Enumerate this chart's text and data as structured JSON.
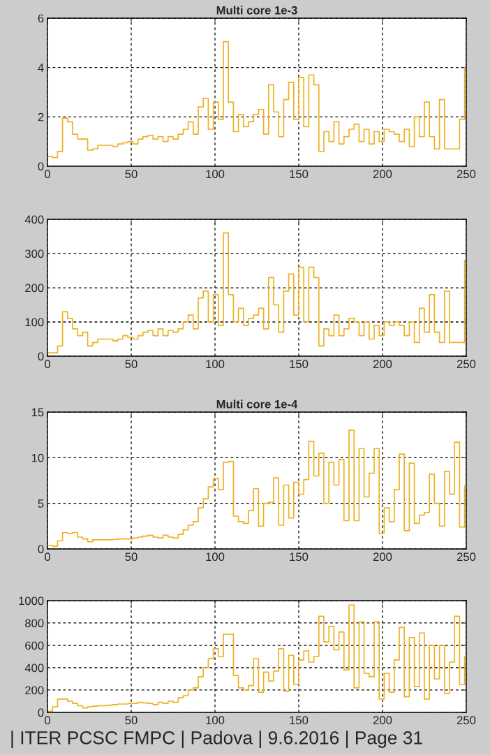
{
  "chart_data": [
    {
      "type": "step",
      "title": "Multi core 1e-3",
      "x": [
        0,
        3,
        6,
        9,
        12,
        15,
        18,
        21,
        24,
        27,
        30,
        33,
        36,
        39,
        42,
        45,
        48,
        51,
        54,
        57,
        60,
        63,
        66,
        69,
        72,
        75,
        78,
        81,
        84,
        87,
        90,
        93,
        96,
        99,
        102,
        105,
        108,
        111,
        114,
        117,
        120,
        123,
        126,
        129,
        132,
        135,
        138,
        141,
        144,
        147,
        150,
        153,
        156,
        159,
        162,
        165,
        168,
        171,
        174,
        177,
        180,
        183,
        186,
        189,
        192,
        195,
        198,
        201,
        204,
        207,
        210,
        213,
        216,
        219,
        222,
        225,
        228,
        231,
        234,
        237,
        240,
        243,
        246,
        249
      ],
      "series": [
        {
          "color": "#edb120",
          "values": [
            0.4,
            0.35,
            0.6,
            1.95,
            1.8,
            1.3,
            1.1,
            1.1,
            0.65,
            0.7,
            0.85,
            0.85,
            0.85,
            0.8,
            0.9,
            0.95,
            1.0,
            0.9,
            1.1,
            1.2,
            1.25,
            1.1,
            1.2,
            1.0,
            1.2,
            1.1,
            1.3,
            1.5,
            1.8,
            1.3,
            2.4,
            2.75,
            1.5,
            2.6,
            1.9,
            5.05,
            2.6,
            1.4,
            2.1,
            1.6,
            1.8,
            2.1,
            2.3,
            1.3,
            3.3,
            2.2,
            1.2,
            2.7,
            3.4,
            1.9,
            3.6,
            1.6,
            3.7,
            3.3,
            0.6,
            1.4,
            1.0,
            1.8,
            0.9,
            1.2,
            1.5,
            1.7,
            1.0,
            1.5,
            0.9,
            1.4,
            1.0,
            1.5,
            1.4,
            1.3,
            1.0,
            1.5,
            0.8,
            2.0,
            1.2,
            2.6,
            1.2,
            0.7,
            2.7,
            0.7,
            0.7,
            0.7,
            1.9,
            4.0
          ]
        }
      ],
      "xlim": [
        0,
        250
      ],
      "ylim": [
        0,
        6
      ],
      "xticks": [
        0,
        50,
        100,
        150,
        200,
        250
      ],
      "yticks": [
        0,
        2,
        4,
        6
      ],
      "grid": true
    },
    {
      "type": "step",
      "x": [
        0,
        3,
        6,
        9,
        12,
        15,
        18,
        21,
        24,
        27,
        30,
        33,
        36,
        39,
        42,
        45,
        48,
        51,
        54,
        57,
        60,
        63,
        66,
        69,
        72,
        75,
        78,
        81,
        84,
        87,
        90,
        93,
        96,
        99,
        102,
        105,
        108,
        111,
        114,
        117,
        120,
        123,
        126,
        129,
        132,
        135,
        138,
        141,
        144,
        147,
        150,
        153,
        156,
        159,
        162,
        165,
        168,
        171,
        174,
        177,
        180,
        183,
        186,
        189,
        192,
        195,
        198,
        201,
        204,
        207,
        210,
        213,
        216,
        219,
        222,
        225,
        228,
        231,
        234,
        237,
        240,
        243,
        246,
        249
      ],
      "series": [
        {
          "color": "#edb120",
          "values": [
            10,
            10,
            30,
            130,
            110,
            80,
            60,
            70,
            30,
            40,
            50,
            50,
            50,
            45,
            50,
            60,
            55,
            50,
            60,
            70,
            75,
            60,
            80,
            60,
            75,
            70,
            80,
            100,
            120,
            80,
            170,
            190,
            100,
            180,
            90,
            360,
            180,
            100,
            140,
            90,
            110,
            120,
            140,
            80,
            230,
            150,
            70,
            190,
            240,
            120,
            260,
            100,
            260,
            230,
            30,
            80,
            60,
            120,
            60,
            80,
            110,
            100,
            60,
            100,
            50,
            90,
            60,
            100,
            90,
            100,
            90,
            60,
            100,
            40,
            140,
            70,
            180,
            70,
            40,
            190,
            40,
            40,
            40,
            280
          ]
        }
      ],
      "xlim": [
        0,
        250
      ],
      "ylim": [
        0,
        400
      ],
      "xticks": [
        0,
        50,
        100,
        150,
        200,
        250
      ],
      "yticks": [
        0,
        100,
        200,
        300,
        400
      ],
      "grid": true
    },
    {
      "type": "step",
      "title": "Multi core 1e-4",
      "x": [
        0,
        3,
        6,
        9,
        12,
        15,
        18,
        21,
        24,
        27,
        30,
        33,
        36,
        39,
        42,
        45,
        48,
        51,
        54,
        57,
        60,
        63,
        66,
        69,
        72,
        75,
        78,
        81,
        84,
        87,
        90,
        93,
        96,
        99,
        102,
        105,
        108,
        111,
        114,
        117,
        120,
        123,
        126,
        129,
        132,
        135,
        138,
        141,
        144,
        147,
        150,
        153,
        156,
        159,
        162,
        165,
        168,
        171,
        174,
        177,
        180,
        183,
        186,
        189,
        192,
        195,
        198,
        201,
        204,
        207,
        210,
        213,
        216,
        219,
        222,
        225,
        228,
        231,
        234,
        237,
        240,
        243,
        246,
        249
      ],
      "series": [
        {
          "color": "#edb120",
          "values": [
            0.4,
            0.3,
            0.9,
            1.8,
            1.7,
            1.8,
            1.3,
            1.1,
            0.8,
            1.0,
            1.0,
            1.0,
            1.0,
            1.05,
            1.1,
            1.1,
            1.1,
            1.2,
            1.3,
            1.4,
            1.5,
            1.3,
            1.2,
            1.5,
            1.3,
            1.2,
            1.6,
            2.1,
            2.6,
            3.0,
            4.5,
            5.5,
            6.8,
            7.7,
            6.5,
            9.5,
            9.6,
            3.6,
            3.0,
            2.8,
            4.2,
            6.6,
            2.5,
            5.0,
            5.1,
            7.8,
            2.6,
            7.0,
            3.4,
            7.3,
            6.0,
            7.6,
            11.8,
            8.0,
            10.5,
            5.0,
            9.5,
            7.0,
            9.8,
            3.1,
            13.0,
            3.1,
            11.0,
            5.7,
            8.3,
            11.0,
            1.7,
            4.5,
            3.0,
            6.5,
            10.4,
            2.0,
            9.4,
            2.8,
            3.7,
            4.0,
            8.2,
            5.0,
            2.5,
            8.5,
            6.0,
            11.7,
            2.4,
            6.9
          ]
        }
      ],
      "xlim": [
        0,
        250
      ],
      "ylim": [
        0,
        15
      ],
      "xticks": [
        0,
        50,
        100,
        150,
        200,
        250
      ],
      "yticks": [
        0,
        5,
        10,
        15
      ],
      "grid": true
    },
    {
      "type": "step",
      "x": [
        0,
        3,
        6,
        9,
        12,
        15,
        18,
        21,
        24,
        27,
        30,
        33,
        36,
        39,
        42,
        45,
        48,
        51,
        54,
        57,
        60,
        63,
        66,
        69,
        72,
        75,
        78,
        81,
        84,
        87,
        90,
        93,
        96,
        99,
        102,
        105,
        108,
        111,
        114,
        117,
        120,
        123,
        126,
        129,
        132,
        135,
        138,
        141,
        144,
        147,
        150,
        153,
        156,
        159,
        162,
        165,
        168,
        171,
        174,
        177,
        180,
        183,
        186,
        189,
        192,
        195,
        198,
        201,
        204,
        207,
        210,
        213,
        216,
        219,
        222,
        225,
        228,
        231,
        234,
        237,
        240,
        243,
        246,
        249
      ],
      "series": [
        {
          "color": "#edb120",
          "values": [
            10,
            50,
            120,
            120,
            100,
            80,
            60,
            40,
            50,
            55,
            60,
            60,
            65,
            70,
            75,
            75,
            80,
            80,
            90,
            85,
            80,
            70,
            90,
            80,
            100,
            90,
            130,
            150,
            200,
            220,
            320,
            400,
            480,
            570,
            500,
            700,
            700,
            330,
            220,
            200,
            240,
            480,
            180,
            360,
            280,
            370,
            570,
            190,
            510,
            250,
            470,
            550,
            450,
            500,
            860,
            630,
            770,
            560,
            720,
            380,
            960,
            220,
            810,
            350,
            320,
            810,
            120,
            350,
            180,
            470,
            760,
            140,
            670,
            230,
            710,
            120,
            600,
            300,
            600,
            170,
            450,
            860,
            250,
            500
          ]
        }
      ],
      "xlim": [
        0,
        250
      ],
      "ylim": [
        0,
        1000
      ],
      "xticks": [
        0,
        50,
        100,
        150,
        200,
        250
      ],
      "yticks": [
        0,
        200,
        400,
        600,
        800,
        1000
      ],
      "grid": true,
      "annotations": [
        "| ITER PCSC FMPC | Padova | 9.6.2016 | Page 31"
      ]
    }
  ]
}
